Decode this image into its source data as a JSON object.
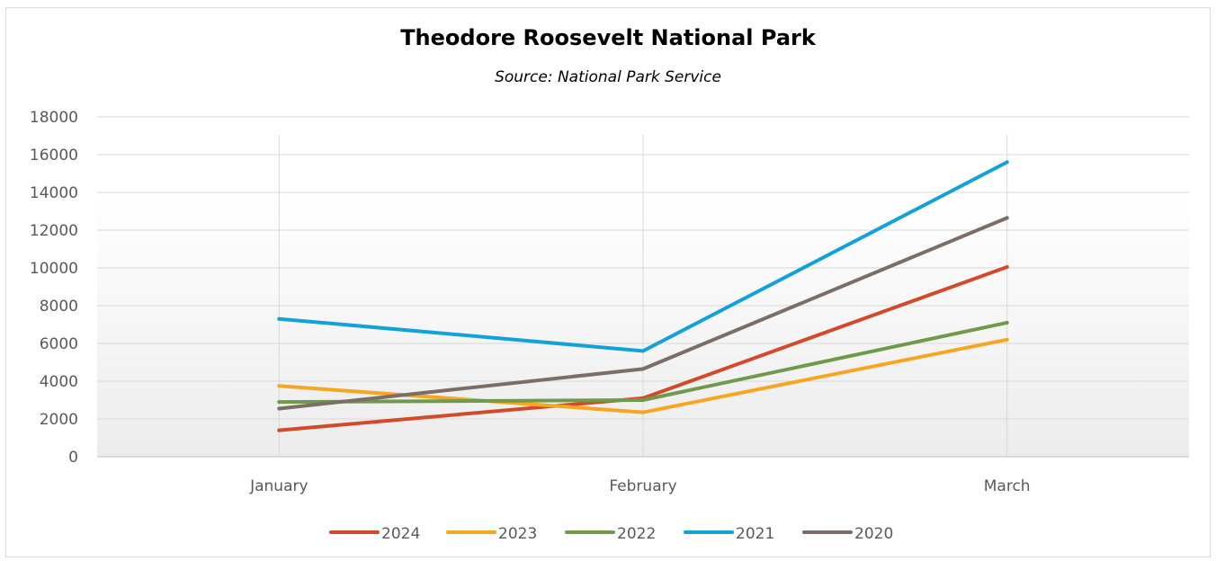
{
  "chart_data": {
    "type": "line",
    "title": "Theodore Roosevelt National Park",
    "subtitle": "Source: National Park Service",
    "categories": [
      "January",
      "February",
      "March"
    ],
    "series": [
      {
        "name": "2024",
        "color": "#d14b2a",
        "values": [
          1400,
          3100,
          10050
        ]
      },
      {
        "name": "2023",
        "color": "#f5a623",
        "values": [
          3750,
          2350,
          6200
        ]
      },
      {
        "name": "2022",
        "color": "#6f9a4a",
        "values": [
          2900,
          3000,
          7100
        ]
      },
      {
        "name": "2021",
        "color": "#12a2d8",
        "values": [
          7300,
          5600,
          15600
        ]
      },
      {
        "name": "2020",
        "color": "#7a6e66",
        "values": [
          2550,
          4650,
          12650
        ]
      }
    ],
    "ylim": [
      0,
      18000
    ],
    "yticks": [
      "0",
      "2000",
      "4000",
      "6000",
      "8000",
      "10000",
      "12000",
      "14000",
      "16000",
      "18000"
    ],
    "grid": true,
    "legend_position": "bottom"
  }
}
